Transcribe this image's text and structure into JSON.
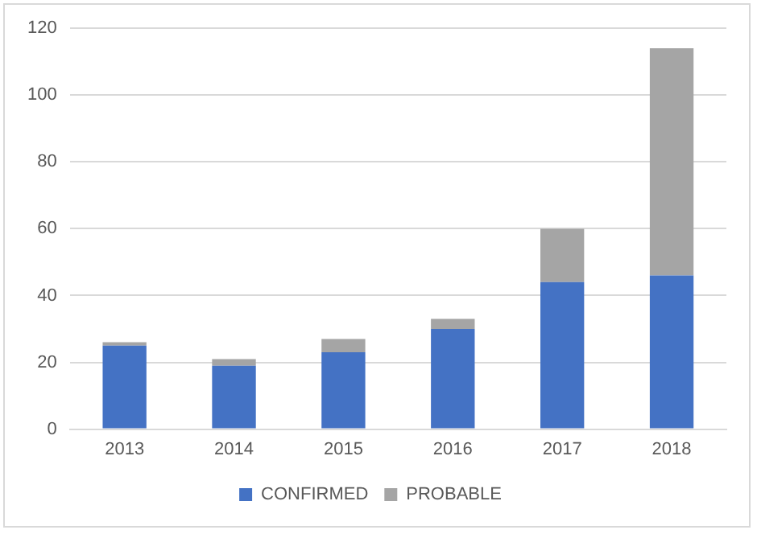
{
  "chart_data": {
    "type": "bar",
    "stacked": true,
    "categories": [
      "2013",
      "2014",
      "2015",
      "2016",
      "2017",
      "2018"
    ],
    "series": [
      {
        "name": "CONFIRMED",
        "color": "#4472c4",
        "values": [
          25,
          19,
          23,
          30,
          44,
          46
        ]
      },
      {
        "name": "PROBABLE",
        "color": "#a5a5a5",
        "values": [
          1,
          2,
          4,
          3,
          16,
          68
        ]
      }
    ],
    "ylim": [
      0,
      120
    ],
    "yticks": [
      0,
      20,
      40,
      60,
      80,
      100,
      120
    ],
    "grid": "y",
    "legend": "bottom"
  }
}
